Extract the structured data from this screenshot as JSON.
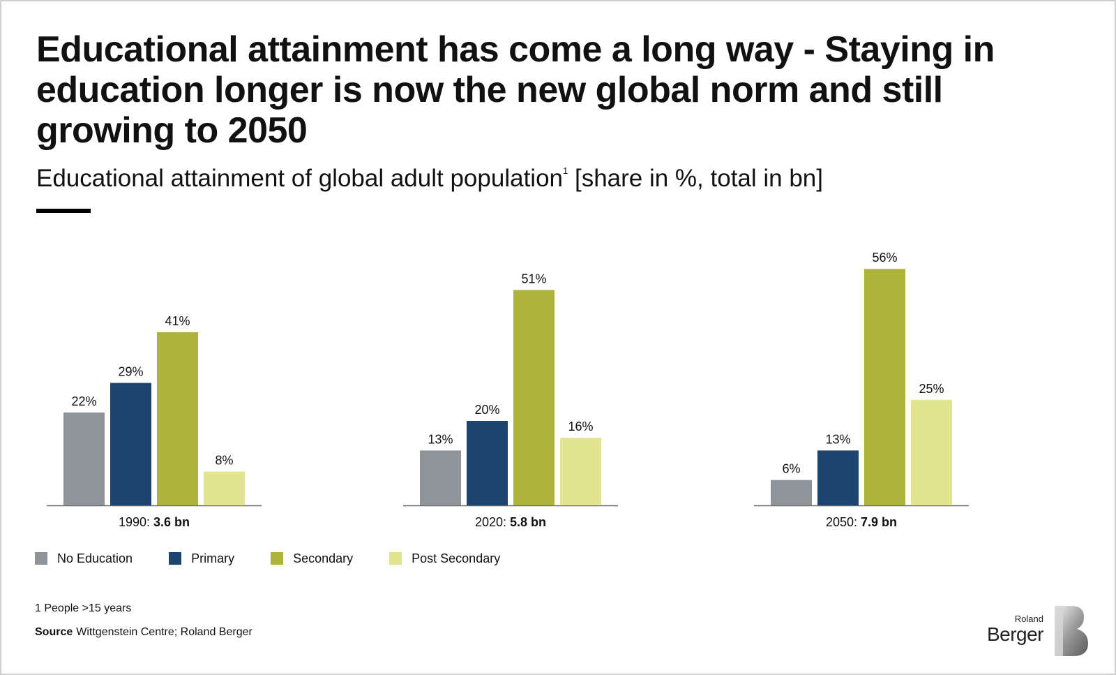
{
  "title": "Educational attainment has come a long way - Staying in education longer is now the new global norm and still growing to 2050",
  "subtitle": {
    "text": "Educational attainment of global adult population",
    "footnote_marker": "1",
    "units": "[share in %, total in bn]"
  },
  "chart_data": {
    "type": "bar",
    "title": "Educational attainment of global adult population [share in %, total in bn]",
    "series_names": [
      "No Education",
      "Primary",
      "Secondary",
      "Post Secondary"
    ],
    "colors": [
      "#8f9499",
      "#1d4570",
      "#aeb43a",
      "#e2e48f"
    ],
    "ylim": [
      0,
      60
    ],
    "groups": [
      {
        "year": "1990",
        "total": "3.6 bn",
        "values": [
          22,
          29,
          41,
          8
        ],
        "labels": [
          "22%",
          "29%",
          "41%",
          "8%"
        ]
      },
      {
        "year": "2020",
        "total": "5.8 bn",
        "values": [
          13,
          20,
          51,
          16
        ],
        "labels": [
          "13%",
          "20%",
          "51%",
          "16%"
        ]
      },
      {
        "year": "2050",
        "total": "7.9 bn",
        "values": [
          6,
          13,
          56,
          25
        ],
        "labels": [
          "6%",
          "13%",
          "56%",
          "25%"
        ]
      }
    ]
  },
  "legend": [
    {
      "label": "No Education",
      "color": "#8f9499"
    },
    {
      "label": "Primary",
      "color": "#1d4570"
    },
    {
      "label": "Secondary",
      "color": "#aeb43a"
    },
    {
      "label": "Post Secondary",
      "color": "#e2e48f"
    }
  ],
  "footnote": "1 People >15 years",
  "source": {
    "label": "Source",
    "text": "Wittgenstein Centre; Roland Berger"
  },
  "logo": {
    "line1": "Roland",
    "line2": "Berger"
  }
}
